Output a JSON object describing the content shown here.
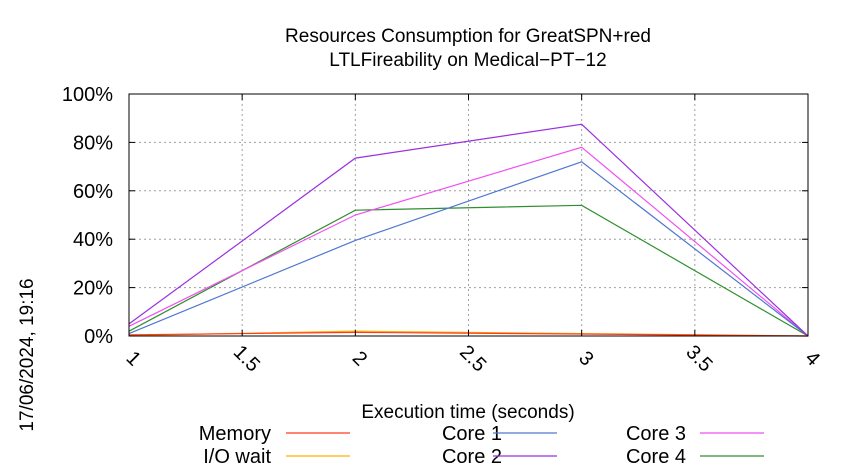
{
  "chart_data": {
    "type": "line",
    "title_lines": [
      "Resources Consumption for GreatSPN+red",
      "LTLFireability on Medical−PT−12"
    ],
    "xlabel": "Execution time (seconds)",
    "ylabel": "",
    "xlim": [
      1,
      4
    ],
    "ylim": [
      0,
      100
    ],
    "x_ticks": [
      1,
      1.5,
      2,
      2.5,
      3,
      3.5,
      4
    ],
    "x_tick_labels": [
      "1",
      "1.5",
      "2",
      "2.5",
      "3",
      "3.5",
      "4"
    ],
    "y_ticks": [
      0,
      20,
      40,
      60,
      80,
      100
    ],
    "y_tick_labels": [
      "0%",
      "20%",
      "40%",
      "60%",
      "80%",
      "100%"
    ],
    "grid": true,
    "legend_placement": "bottom",
    "timestamp": "17/06/2024, 19:16",
    "series": [
      {
        "name": "Memory",
        "color": "#ff3b1f",
        "x": [
          1,
          2,
          3,
          4
        ],
        "values": [
          0.5,
          1.5,
          0.8,
          0
        ]
      },
      {
        "name": "I/O wait",
        "color": "#ffb000",
        "x": [
          1,
          2,
          3,
          4
        ],
        "values": [
          0.2,
          2.0,
          1.0,
          0
        ]
      },
      {
        "name": "Core 1",
        "color": "#4f77d1",
        "x": [
          1,
          2,
          3,
          4
        ],
        "values": [
          1,
          39.5,
          72,
          0
        ]
      },
      {
        "name": "Core 2",
        "color": "#9b30e0",
        "x": [
          1,
          2,
          3,
          4
        ],
        "values": [
          5,
          73.5,
          87.5,
          0
        ]
      },
      {
        "name": "Core 3",
        "color": "#f050f0",
        "x": [
          1,
          2,
          3,
          4
        ],
        "values": [
          4,
          50,
          78,
          0
        ]
      },
      {
        "name": "Core 4",
        "color": "#2f8f2f",
        "x": [
          1,
          2,
          3,
          4
        ],
        "values": [
          2,
          52,
          54,
          0
        ]
      }
    ]
  }
}
